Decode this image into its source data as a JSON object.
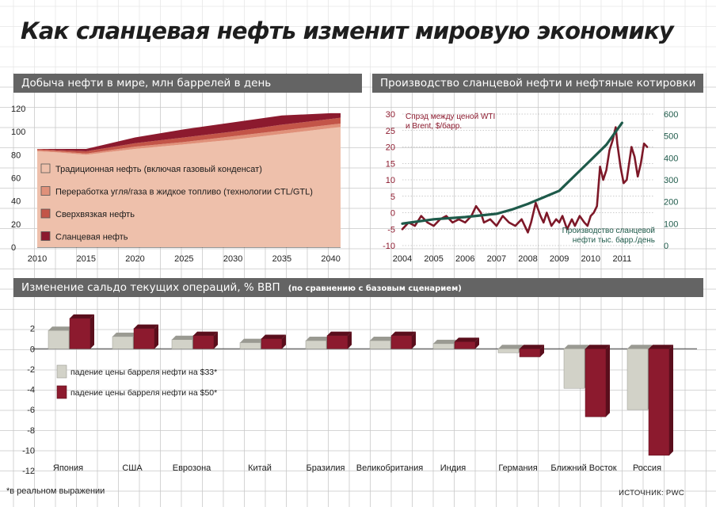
{
  "title": "Как сланцевая нефть изменит мировую экономику",
  "footnote": "*в реальном выражении",
  "source": "ИСТОЧНИК: PWC",
  "colors": {
    "grid": "#c9c9c9",
    "header_bg": "#646464",
    "conventional": "#eec0ab",
    "ctl_gtl": "#e0917a",
    "heavy": "#c35548",
    "shale": "#8c1a2e",
    "spread_line": "#7d1828",
    "production_line": "#1e5a4a",
    "left_axis_text": "#8c1a2e",
    "right_axis_text": "#1e5a4a",
    "bar_33": "#d2d2c8",
    "bar_50": "#8c1a2e"
  },
  "chart_data": [
    {
      "id": "world-oil-production",
      "type": "area",
      "title": "Добыча нефти в мире, млн баррелей в день",
      "xlim": [
        2010,
        2041
      ],
      "ylim": [
        0,
        120
      ],
      "x_ticks": [
        2010,
        2015,
        2020,
        2025,
        2030,
        2035,
        2040
      ],
      "y_ticks": [
        0,
        20,
        40,
        60,
        80,
        100,
        120
      ],
      "x": [
        2010,
        2012,
        2015,
        2020,
        2025,
        2030,
        2035,
        2040,
        2041
      ],
      "series": [
        {
          "name": "Традиционная нефть (включая газовый конденсат)",
          "values": [
            83,
            82,
            80,
            85,
            89,
            93,
            98,
            103,
            104
          ]
        },
        {
          "name": "Переработка угля/газа в жидкое топливо (технологии CTL/GTL)",
          "values": [
            1,
            1,
            1,
            2,
            2,
            3,
            3,
            3,
            3
          ]
        },
        {
          "name": "Сверхвязкая нефть",
          "values": [
            1,
            1,
            2,
            3,
            4,
            4,
            5,
            5,
            5
          ]
        },
        {
          "name": "Сланцевая нефть",
          "values": [
            0,
            1,
            2,
            5,
            7,
            8,
            8,
            5,
            4
          ]
        }
      ],
      "legend_position": "bottom-left",
      "grid": true
    },
    {
      "id": "shale-production-and-prices",
      "type": "line",
      "title": "Производство сланцевой нефти и нефтяные котировки",
      "xlim": [
        2004,
        2012
      ],
      "x_ticks": [
        2004,
        2005,
        2006,
        2007,
        2008,
        2009,
        2010,
        2011
      ],
      "y_left": {
        "ylim": [
          -10,
          30
        ],
        "ticks": [
          -10,
          -5,
          0,
          5,
          10,
          15,
          20,
          25,
          30
        ]
      },
      "y_right": {
        "ylim": [
          0,
          600
        ],
        "ticks": [
          0,
          100,
          200,
          300,
          400,
          500,
          600
        ]
      },
      "series": [
        {
          "name": "Спрэд между ценой WTI и Brent, $/барр.",
          "axis": "left",
          "x": [
            2004.0,
            2004.2,
            2004.4,
            2004.6,
            2004.8,
            2005.0,
            2005.2,
            2005.4,
            2005.6,
            2005.8,
            2006.0,
            2006.2,
            2006.35,
            2006.5,
            2006.6,
            2006.8,
            2007.0,
            2007.2,
            2007.4,
            2007.6,
            2007.8,
            2008.0,
            2008.1,
            2008.25,
            2008.4,
            2008.5,
            2008.6,
            2008.75,
            2008.9,
            2009.0,
            2009.1,
            2009.25,
            2009.4,
            2009.5,
            2009.65,
            2009.8,
            2009.9,
            2010.0,
            2010.1,
            2010.2,
            2010.3,
            2010.4,
            2010.5,
            2010.6,
            2010.7,
            2010.8,
            2010.85,
            2010.95,
            2011.05,
            2011.15,
            2011.3,
            2011.4,
            2011.5,
            2011.6,
            2011.7,
            2011.8
          ],
          "values": [
            -5,
            -3,
            -4,
            -1,
            -3,
            -4,
            -2,
            -1,
            -3,
            -2,
            -3,
            -1,
            2,
            0,
            -3,
            -2,
            -4,
            -1,
            -3,
            -4,
            -2,
            -6,
            -3,
            3,
            -1,
            -3,
            0,
            -4,
            -2,
            -3,
            -1,
            -5,
            -2,
            -4,
            -1,
            -3,
            -4,
            -1,
            0,
            2,
            14,
            10,
            13,
            19,
            22,
            26,
            21,
            14,
            9,
            10,
            20,
            17,
            11,
            15,
            21,
            20
          ]
        },
        {
          "name": "Производство сланцевой нефти тыс. барр./день",
          "axis": "right",
          "x": [
            2004.0,
            2005.0,
            2006.0,
            2007.0,
            2007.5,
            2008.0,
            2008.5,
            2009.0,
            2009.5,
            2010.0,
            2010.5,
            2011.0
          ],
          "values": [
            100,
            120,
            130,
            145,
            165,
            190,
            220,
            250,
            320,
            390,
            460,
            560
          ]
        }
      ],
      "annotations": [
        {
          "text": [
            "Спрэд между ценой WTI",
            "и Brent, $/барр."
          ]
        },
        {
          "text": [
            "Производство сланцевой",
            "нефти тыс. барр./день"
          ]
        }
      ],
      "grid": true
    },
    {
      "id": "current-account-change",
      "type": "bar",
      "title": "Изменение сальдо текущих операций, % ВВП",
      "subtitle": "(по сравнению с базовым сценарием)",
      "ylim": [
        -12,
        4
      ],
      "y_ticks": [
        -12,
        -10,
        -8,
        -6,
        -4,
        -2,
        0,
        2
      ],
      "categories": [
        "Япония",
        "США",
        "Еврозона",
        "Китай",
        "Бразилия",
        "Великобритания",
        "Индия",
        "Германия",
        "Ближний Восток",
        "Россия"
      ],
      "series": [
        {
          "name": "падение цены барреля нефти на $33*",
          "values": [
            1.8,
            1.2,
            0.9,
            0.6,
            0.8,
            0.8,
            0.5,
            -0.4,
            -3.9,
            -6.0
          ]
        },
        {
          "name": "падение цены барреля нефти на $50*",
          "values": [
            3.0,
            2.0,
            1.3,
            1.0,
            1.3,
            1.3,
            0.7,
            -0.8,
            -6.7,
            -10.5
          ]
        }
      ],
      "legend_position": "left",
      "grid": true
    }
  ]
}
